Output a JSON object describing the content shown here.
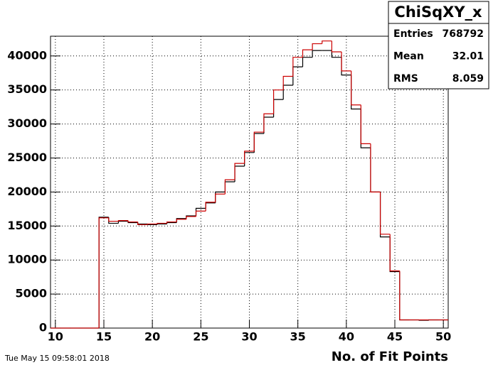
{
  "chart_data": {
    "type": "histogram",
    "bins": [
      9.5,
      10.5,
      11.5,
      12.5,
      13.5,
      14.5,
      15.5,
      16.5,
      17.5,
      18.5,
      19.5,
      20.5,
      21.5,
      22.5,
      23.5,
      24.5,
      25.5,
      26.5,
      27.5,
      28.5,
      29.5,
      30.5,
      31.5,
      32.5,
      33.5,
      34.5,
      35.5,
      36.5,
      37.5,
      38.5,
      39.5,
      40.5,
      41.5,
      42.5,
      43.5,
      44.5,
      45.5,
      46.5,
      47.5,
      48.5,
      49.5,
      50.5
    ],
    "series": [
      {
        "color": "#000000",
        "values": [
          0,
          0,
          0,
          0,
          0,
          16300,
          15400,
          15700,
          15500,
          15300,
          15200,
          15300,
          15500,
          16100,
          16500,
          17600,
          18400,
          20000,
          21500,
          23800,
          25800,
          28600,
          31000,
          33600,
          35700,
          38400,
          39800,
          40800,
          40800,
          39800,
          37200,
          32200,
          26500,
          20000,
          13400,
          8300,
          1200,
          1200,
          1150,
          1200,
          1200
        ]
      },
      {
        "color": "#cc0000",
        "values": [
          0,
          0,
          0,
          0,
          0,
          16200,
          15700,
          15800,
          15600,
          15200,
          15300,
          15400,
          15600,
          16000,
          16400,
          17200,
          18500,
          19700,
          21800,
          24200,
          26000,
          28800,
          31500,
          35000,
          37000,
          39800,
          40900,
          41800,
          42200,
          40600,
          37800,
          32800,
          27100,
          20000,
          13800,
          8400,
          1200,
          1200,
          1200,
          1200,
          1200
        ]
      }
    ],
    "xlim": [
      9.5,
      50.5
    ],
    "xticks": [
      10,
      15,
      20,
      25,
      30,
      35,
      40,
      45,
      50
    ],
    "ylim": [
      0,
      42900
    ],
    "yticks": [
      0,
      5000,
      10000,
      15000,
      20000,
      25000,
      30000,
      35000,
      40000
    ],
    "x_label": "No. of Fit Points",
    "grid": true,
    "stats": {
      "title": "ChiSqXY_x",
      "rows": [
        {
          "label": "Entries",
          "value": 768792
        },
        {
          "label": "Mean",
          "value": 32.01
        },
        {
          "label": "RMS",
          "value": 8.059
        }
      ]
    },
    "timestamp": "Tue May 15 09:58:01 2018"
  }
}
